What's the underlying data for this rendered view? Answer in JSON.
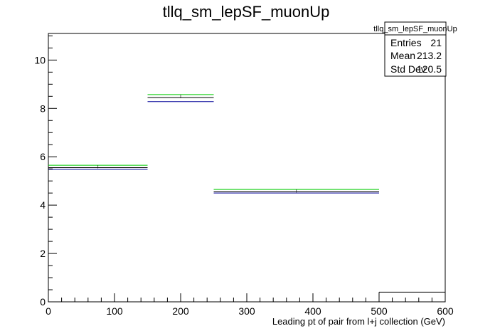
{
  "chart_data": {
    "type": "histogram",
    "title": "tllq_sm_lepSF_muonUp",
    "xlabel": "Leading pt of pair from l+j collection (GeV)",
    "ylabel": "",
    "xlim": [
      0,
      600
    ],
    "ylim": [
      0,
      11.1
    ],
    "x_ticks": [
      0,
      100,
      200,
      300,
      400,
      500,
      600
    ],
    "y_ticks": [
      0,
      2,
      4,
      6,
      8,
      10
    ],
    "grid": false,
    "stats_box": {
      "title": "tllq_sm_lepSF_muonUp",
      "rows": [
        {
          "label": "Entries",
          "value": "21"
        },
        {
          "label": "Mean",
          "value": "213.2"
        },
        {
          "label": "Std Dev",
          "value": "120.5"
        }
      ]
    },
    "bins": [
      {
        "x0": 0,
        "x1": 150,
        "y": 5.55,
        "up": 5.65,
        "down": 5.48
      },
      {
        "x0": 150,
        "x1": 250,
        "y": 8.45,
        "up": 8.57,
        "down": 8.28
      },
      {
        "x0": 250,
        "x1": 500,
        "y": 4.55,
        "up": 4.65,
        "down": 4.5
      },
      {
        "x0": 500,
        "x1": 600,
        "y": 0.4,
        "up": null,
        "down": null
      }
    ],
    "colors": {
      "nominal": "#000000",
      "up": "#00cc00",
      "down": "#000099"
    }
  }
}
